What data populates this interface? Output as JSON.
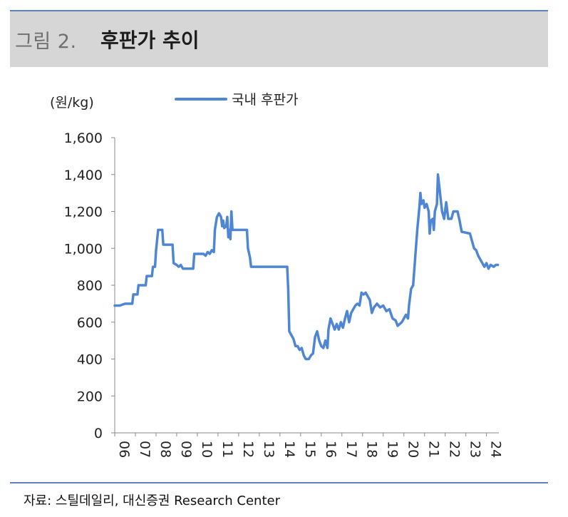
{
  "figure": {
    "label": "그림 2.",
    "title": "후판가 추이"
  },
  "source": "자료: 스틸데일리, 대신증권 Research Center",
  "colors": {
    "line": "#4f86d4",
    "rule": "#5b84bd",
    "title_band": "#d6d6d6"
  },
  "chart_data": {
    "type": "line",
    "ylabel": "(원/kg)",
    "ylim": [
      0,
      1600
    ],
    "yticks": [
      0,
      200,
      400,
      600,
      800,
      1000,
      1200,
      1400,
      1600
    ],
    "ytick_labels": [
      "0",
      "200",
      "400",
      "600",
      "800",
      "1,000",
      "1,200",
      "1,400",
      "1,600"
    ],
    "xlim": [
      2006.0,
      2024.6
    ],
    "xtick_labels": [
      "06",
      "07",
      "08",
      "09",
      "10",
      "11",
      "12",
      "13",
      "14",
      "15",
      "16",
      "17",
      "18",
      "19",
      "20",
      "21",
      "22",
      "23",
      "24"
    ],
    "xtick_values": [
      2006,
      2007,
      2008,
      2009,
      2010,
      2011,
      2012,
      2013,
      2014,
      2015,
      2016,
      2017,
      2018,
      2019,
      2020,
      2021,
      2022,
      2023,
      2024
    ],
    "grid": false,
    "legend_position": "top",
    "series": [
      {
        "name": "국내 후판가",
        "points": [
          [
            2006.0,
            690
          ],
          [
            2006.25,
            690
          ],
          [
            2006.5,
            700
          ],
          [
            2006.85,
            700
          ],
          [
            2006.9,
            750
          ],
          [
            2007.1,
            750
          ],
          [
            2007.15,
            800
          ],
          [
            2007.5,
            800
          ],
          [
            2007.55,
            850
          ],
          [
            2007.8,
            850
          ],
          [
            2007.85,
            900
          ],
          [
            2007.95,
            900
          ],
          [
            2008.0,
            990
          ],
          [
            2008.1,
            1100
          ],
          [
            2008.3,
            1100
          ],
          [
            2008.35,
            1020
          ],
          [
            2008.8,
            1020
          ],
          [
            2008.85,
            920
          ],
          [
            2009.0,
            910
          ],
          [
            2009.1,
            900
          ],
          [
            2009.2,
            910
          ],
          [
            2009.3,
            890
          ],
          [
            2009.8,
            890
          ],
          [
            2009.85,
            970
          ],
          [
            2010.3,
            970
          ],
          [
            2010.4,
            960
          ],
          [
            2010.5,
            980
          ],
          [
            2010.6,
            970
          ],
          [
            2010.7,
            990
          ],
          [
            2010.8,
            980
          ],
          [
            2010.85,
            1100
          ],
          [
            2010.95,
            1170
          ],
          [
            2011.05,
            1190
          ],
          [
            2011.15,
            1170
          ],
          [
            2011.2,
            1120
          ],
          [
            2011.25,
            1150
          ],
          [
            2011.3,
            1110
          ],
          [
            2011.4,
            1120
          ],
          [
            2011.45,
            1170
          ],
          [
            2011.5,
            1060
          ],
          [
            2011.55,
            1100
          ],
          [
            2011.6,
            1050
          ],
          [
            2011.65,
            1200
          ],
          [
            2011.7,
            1100
          ],
          [
            2012.3,
            1100
          ],
          [
            2012.4,
            1100
          ],
          [
            2012.45,
            1000
          ],
          [
            2012.55,
            950
          ],
          [
            2012.6,
            900
          ],
          [
            2014.35,
            900
          ],
          [
            2014.4,
            780
          ],
          [
            2014.45,
            550
          ],
          [
            2014.55,
            530
          ],
          [
            2014.65,
            510
          ],
          [
            2014.75,
            470
          ],
          [
            2014.85,
            470
          ],
          [
            2014.95,
            450
          ],
          [
            2015.05,
            460
          ],
          [
            2015.15,
            420
          ],
          [
            2015.25,
            400
          ],
          [
            2015.4,
            400
          ],
          [
            2015.5,
            420
          ],
          [
            2015.6,
            430
          ],
          [
            2015.7,
            520
          ],
          [
            2015.8,
            550
          ],
          [
            2015.9,
            500
          ],
          [
            2016.0,
            470
          ],
          [
            2016.1,
            460
          ],
          [
            2016.2,
            500
          ],
          [
            2016.3,
            460
          ],
          [
            2016.35,
            560
          ],
          [
            2016.45,
            620
          ],
          [
            2016.55,
            590
          ],
          [
            2016.65,
            560
          ],
          [
            2016.75,
            590
          ],
          [
            2016.85,
            560
          ],
          [
            2016.95,
            600
          ],
          [
            2017.05,
            570
          ],
          [
            2017.15,
            620
          ],
          [
            2017.25,
            660
          ],
          [
            2017.35,
            600
          ],
          [
            2017.45,
            650
          ],
          [
            2017.55,
            670
          ],
          [
            2017.65,
            690
          ],
          [
            2017.75,
            700
          ],
          [
            2017.85,
            690
          ],
          [
            2017.95,
            760
          ],
          [
            2018.05,
            750
          ],
          [
            2018.15,
            760
          ],
          [
            2018.25,
            740
          ],
          [
            2018.35,
            720
          ],
          [
            2018.45,
            650
          ],
          [
            2018.55,
            680
          ],
          [
            2018.7,
            700
          ],
          [
            2018.85,
            680
          ],
          [
            2019.0,
            690
          ],
          [
            2019.15,
            660
          ],
          [
            2019.3,
            670
          ],
          [
            2019.45,
            620
          ],
          [
            2019.6,
            610
          ],
          [
            2019.7,
            580
          ],
          [
            2019.8,
            590
          ],
          [
            2019.9,
            600
          ],
          [
            2020.0,
            620
          ],
          [
            2020.1,
            640
          ],
          [
            2020.2,
            620
          ],
          [
            2020.25,
            690
          ],
          [
            2020.35,
            780
          ],
          [
            2020.45,
            800
          ],
          [
            2020.55,
            950
          ],
          [
            2020.65,
            1100
          ],
          [
            2020.75,
            1220
          ],
          [
            2020.8,
            1300
          ],
          [
            2020.85,
            1240
          ],
          [
            2020.95,
            1260
          ],
          [
            2021.0,
            1220
          ],
          [
            2021.1,
            1240
          ],
          [
            2021.2,
            1200
          ],
          [
            2021.25,
            1080
          ],
          [
            2021.3,
            1150
          ],
          [
            2021.4,
            1160
          ],
          [
            2021.45,
            1100
          ],
          [
            2021.5,
            1200
          ],
          [
            2021.6,
            1240
          ],
          [
            2021.65,
            1400
          ],
          [
            2021.75,
            1300
          ],
          [
            2021.85,
            1200
          ],
          [
            2021.95,
            1160
          ],
          [
            2022.05,
            1250
          ],
          [
            2022.15,
            1160
          ],
          [
            2022.3,
            1160
          ],
          [
            2022.4,
            1200
          ],
          [
            2022.6,
            1200
          ],
          [
            2022.7,
            1150
          ],
          [
            2022.8,
            1090
          ],
          [
            2023.2,
            1080
          ],
          [
            2023.3,
            1040
          ],
          [
            2023.4,
            1000
          ],
          [
            2023.5,
            990
          ],
          [
            2023.6,
            960
          ],
          [
            2023.7,
            940
          ],
          [
            2023.8,
            920
          ],
          [
            2023.9,
            900
          ],
          [
            2024.0,
            920
          ],
          [
            2024.1,
            890
          ],
          [
            2024.2,
            910
          ],
          [
            2024.35,
            900
          ],
          [
            2024.45,
            910
          ],
          [
            2024.55,
            910
          ]
        ]
      }
    ]
  }
}
